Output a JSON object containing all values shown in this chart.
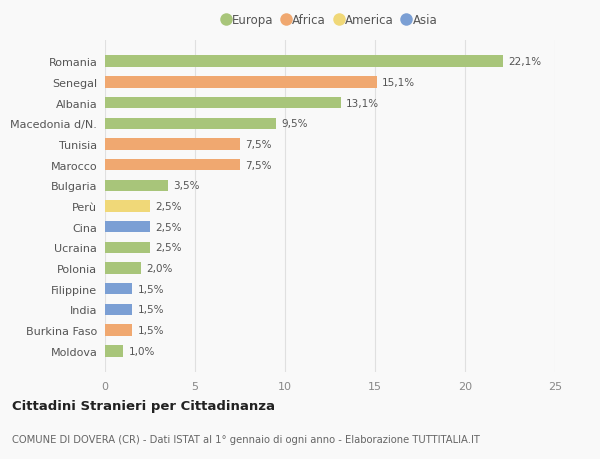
{
  "countries": [
    "Romania",
    "Senegal",
    "Albania",
    "Macedonia d/N.",
    "Tunisia",
    "Marocco",
    "Bulgaria",
    "Perù",
    "Cina",
    "Ucraina",
    "Polonia",
    "Filippine",
    "India",
    "Burkina Faso",
    "Moldova"
  ],
  "values": [
    22.1,
    15.1,
    13.1,
    9.5,
    7.5,
    7.5,
    3.5,
    2.5,
    2.5,
    2.5,
    2.0,
    1.5,
    1.5,
    1.5,
    1.0
  ],
  "labels": [
    "22,1%",
    "15,1%",
    "13,1%",
    "9,5%",
    "7,5%",
    "7,5%",
    "3,5%",
    "2,5%",
    "2,5%",
    "2,5%",
    "2,0%",
    "1,5%",
    "1,5%",
    "1,5%",
    "1,0%"
  ],
  "colors": [
    "#a8c57a",
    "#f0a870",
    "#a8c57a",
    "#a8c57a",
    "#f0a870",
    "#f0a870",
    "#a8c57a",
    "#f0d878",
    "#7b9fd4",
    "#a8c57a",
    "#a8c57a",
    "#7b9fd4",
    "#7b9fd4",
    "#f0a870",
    "#a8c57a"
  ],
  "legend_labels": [
    "Europa",
    "Africa",
    "America",
    "Asia"
  ],
  "legend_colors": [
    "#a8c57a",
    "#f0a870",
    "#f0d878",
    "#7b9fd4"
  ],
  "title": "Cittadini Stranieri per Cittadinanza",
  "subtitle": "COMUNE DI DOVERA (CR) - Dati ISTAT al 1° gennaio di ogni anno - Elaborazione TUTTITALIA.IT",
  "xlim": [
    0,
    25
  ],
  "xticks": [
    0,
    5,
    10,
    15,
    20,
    25
  ],
  "background_color": "#f9f9f9",
  "grid_color": "#e0e0e0",
  "bar_height": 0.55
}
